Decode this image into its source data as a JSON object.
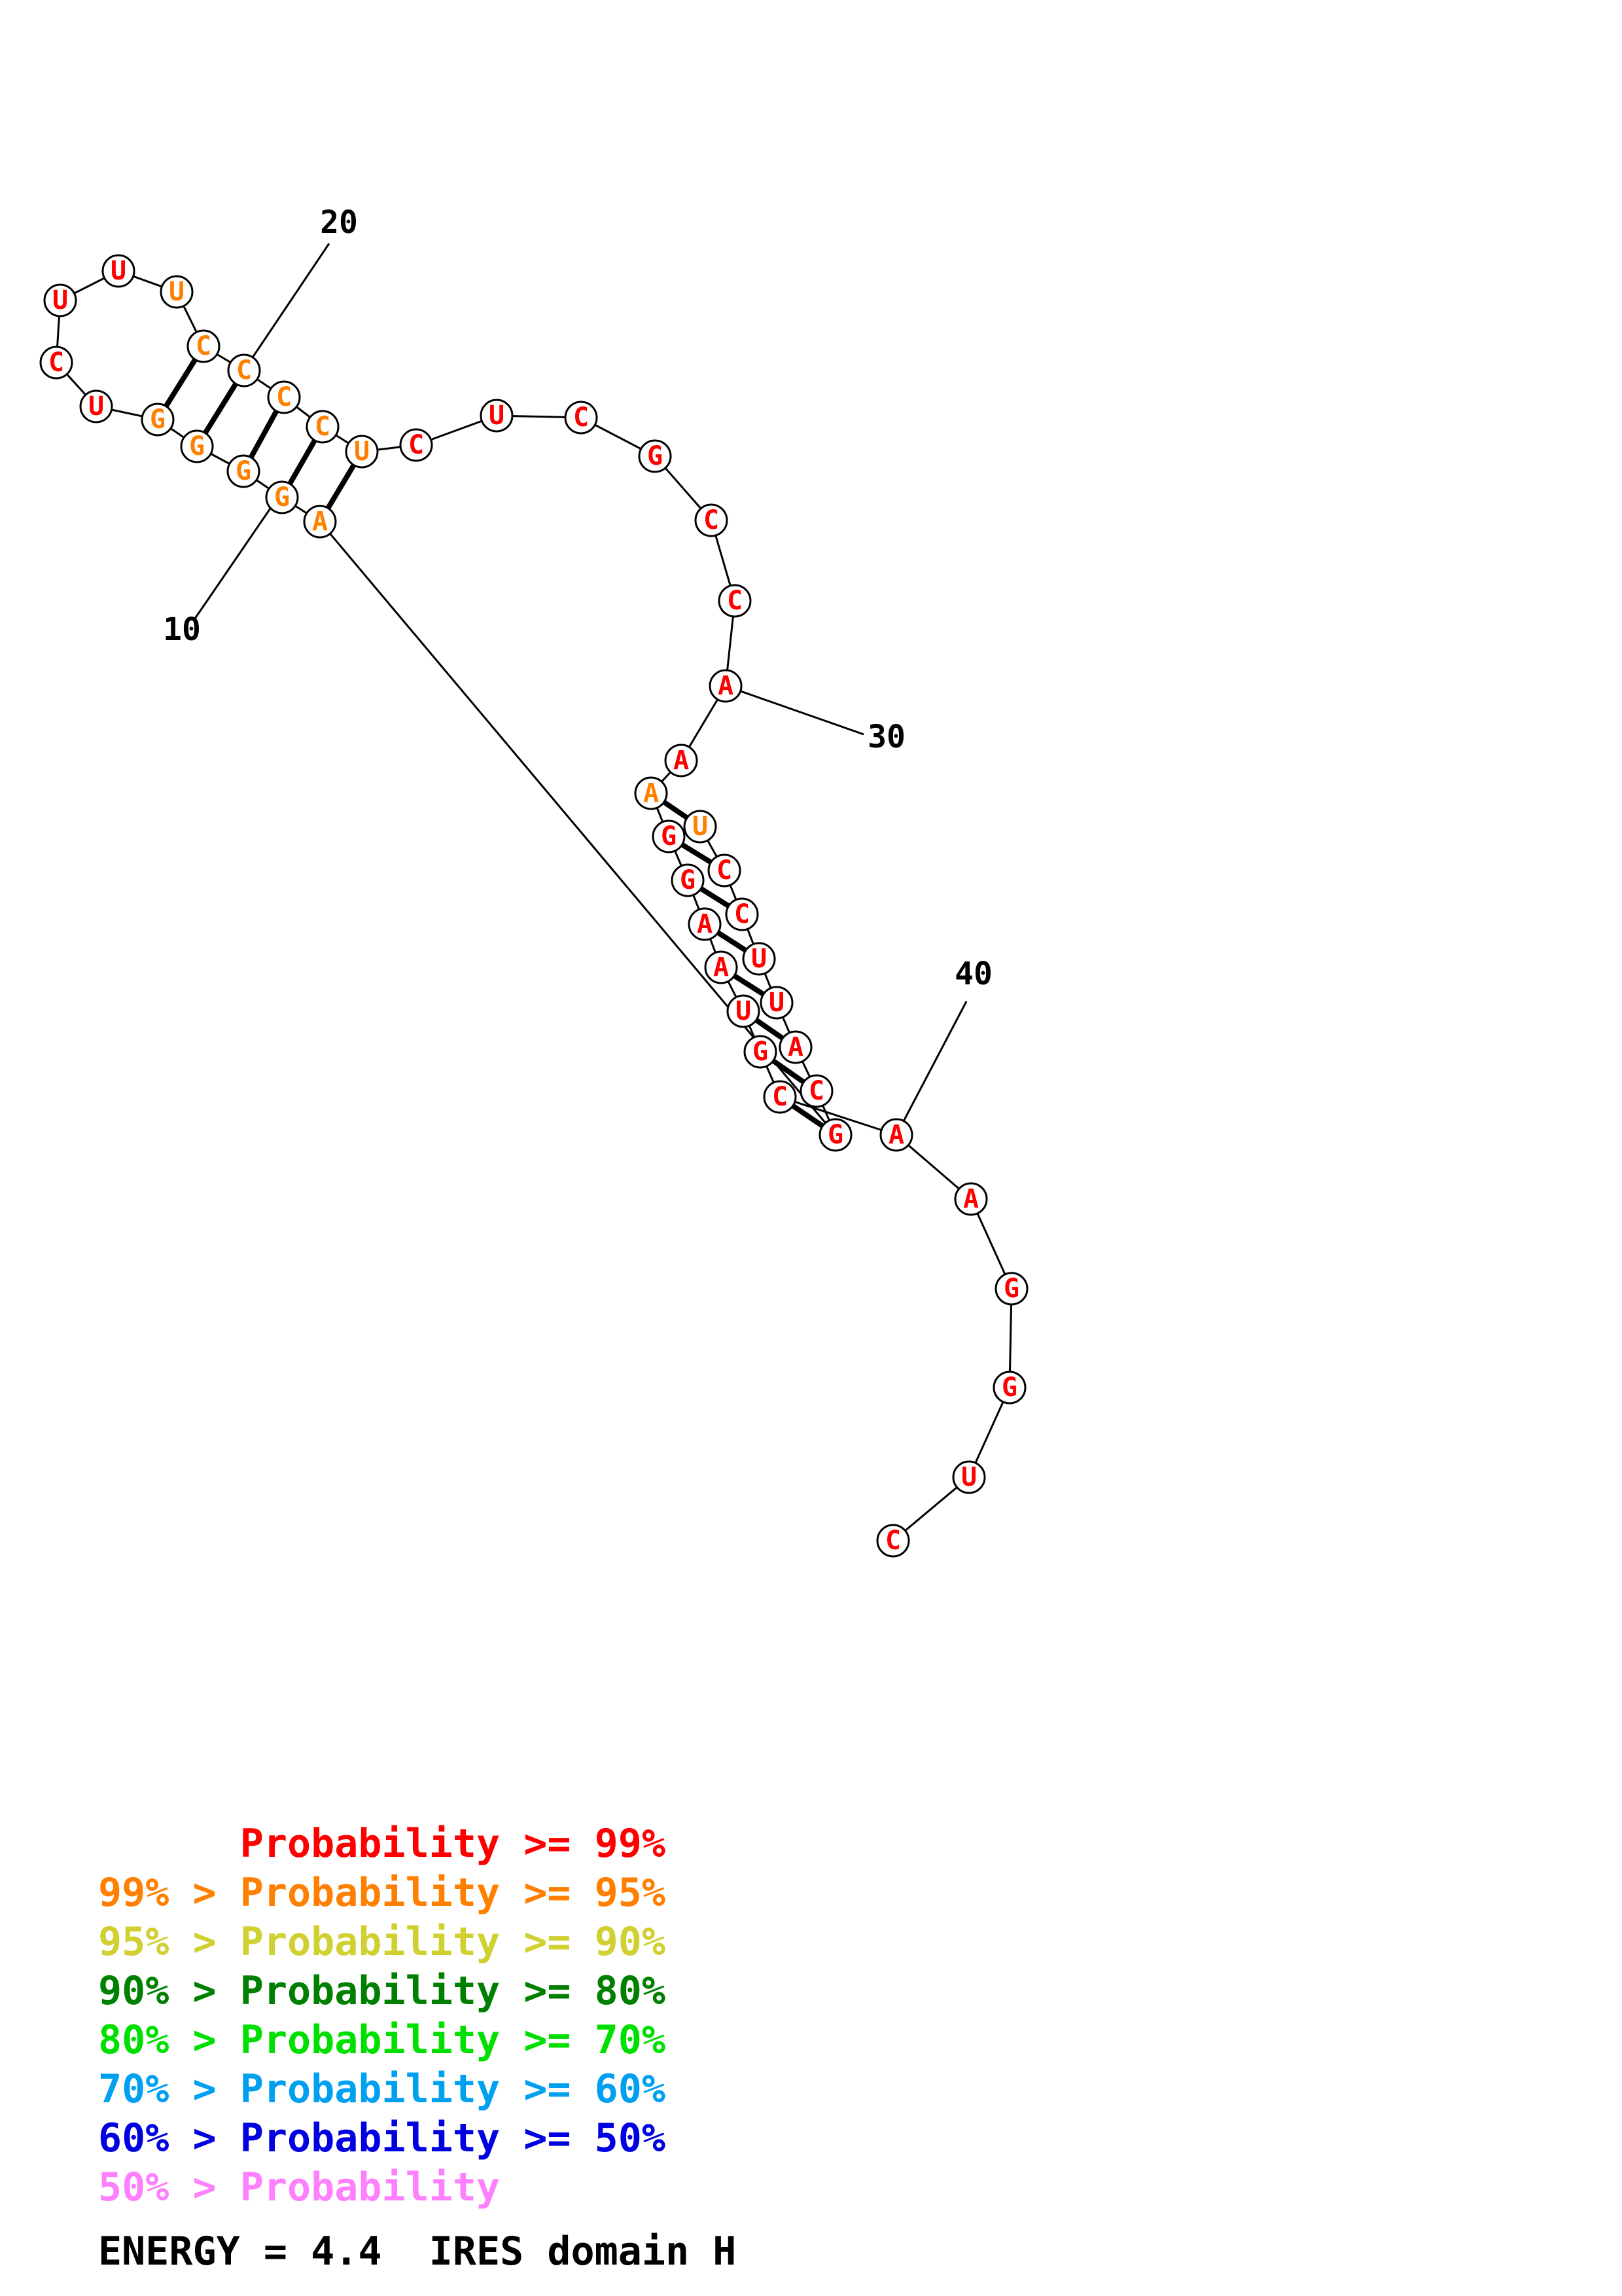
{
  "structure": {
    "nucleotides": [
      {
        "n": 1,
        "base": "U",
        "prob": "p95"
      },
      {
        "n": 2,
        "base": "C",
        "prob": "p99"
      },
      {
        "n": 3,
        "base": "C",
        "prob": "p99"
      },
      {
        "n": 4,
        "base": "U",
        "prob": "p99"
      },
      {
        "n": 5,
        "base": "U",
        "prob": "p99"
      },
      {
        "n": 6,
        "base": "A",
        "prob": "p99"
      },
      {
        "n": 7,
        "base": "C",
        "prob": "p99"
      },
      {
        "n": 8,
        "base": "G",
        "prob": "p99"
      },
      {
        "n": 9,
        "base": "A",
        "prob": "p95"
      },
      {
        "n": 10,
        "base": "G",
        "prob": "p95"
      },
      {
        "n": 11,
        "base": "G",
        "prob": "p95"
      },
      {
        "n": 12,
        "base": "G",
        "prob": "p95"
      },
      {
        "n": 13,
        "base": "G",
        "prob": "p95"
      },
      {
        "n": 14,
        "base": "U",
        "prob": "p99"
      },
      {
        "n": 15,
        "base": "C",
        "prob": "p99"
      },
      {
        "n": 16,
        "base": "U",
        "prob": "p99"
      },
      {
        "n": 17,
        "base": "U",
        "prob": "p99"
      },
      {
        "n": 18,
        "base": "U",
        "prob": "p95"
      },
      {
        "n": 19,
        "base": "C",
        "prob": "p95"
      },
      {
        "n": 20,
        "base": "C",
        "prob": "p95"
      },
      {
        "n": 21,
        "base": "C",
        "prob": "p95"
      },
      {
        "n": 22,
        "base": "C",
        "prob": "p95"
      },
      {
        "n": 23,
        "base": "U",
        "prob": "p95"
      },
      {
        "n": 24,
        "base": "C",
        "prob": "p99"
      },
      {
        "n": 25,
        "base": "U",
        "prob": "p99"
      },
      {
        "n": 26,
        "base": "C",
        "prob": "p99"
      },
      {
        "n": 27,
        "base": "G",
        "prob": "p99"
      },
      {
        "n": 28,
        "base": "C",
        "prob": "p99"
      },
      {
        "n": 29,
        "base": "C",
        "prob": "p99"
      },
      {
        "n": 30,
        "base": "A",
        "prob": "p99"
      },
      {
        "n": 31,
        "base": "A",
        "prob": "p99"
      },
      {
        "n": 32,
        "base": "A",
        "prob": "p95"
      },
      {
        "n": 33,
        "base": "G",
        "prob": "p99"
      },
      {
        "n": 34,
        "base": "G",
        "prob": "p99"
      },
      {
        "n": 35,
        "base": "A",
        "prob": "p99"
      },
      {
        "n": 36,
        "base": "A",
        "prob": "p99"
      },
      {
        "n": 37,
        "base": "U",
        "prob": "p99"
      },
      {
        "n": 38,
        "base": "G",
        "prob": "p99"
      },
      {
        "n": 39,
        "base": "C",
        "prob": "p99"
      },
      {
        "n": 40,
        "base": "A",
        "prob": "p99"
      },
      {
        "n": 41,
        "base": "A",
        "prob": "p99"
      },
      {
        "n": 42,
        "base": "G",
        "prob": "p99"
      },
      {
        "n": 43,
        "base": "G",
        "prob": "p99"
      },
      {
        "n": 44,
        "base": "U",
        "prob": "p99"
      },
      {
        "n": 45,
        "base": "C",
        "prob": "p99"
      }
    ],
    "pairs": [
      [
        1,
        32
      ],
      [
        2,
        33
      ],
      [
        3,
        34
      ],
      [
        4,
        35
      ],
      [
        5,
        36
      ],
      [
        6,
        37
      ],
      [
        7,
        38
      ],
      [
        8,
        39
      ],
      [
        9,
        23
      ],
      [
        10,
        22
      ],
      [
        11,
        21
      ],
      [
        12,
        20
      ],
      [
        13,
        19
      ]
    ],
    "index_labels": [
      "10",
      "20",
      "30",
      "40"
    ]
  },
  "legend": {
    "lines": [
      {
        "text": "      Probability >= 99%",
        "color": "#ff0000"
      },
      {
        "text": "99% > Probability >= 95%",
        "color": "#ff8000"
      },
      {
        "text": "95% > Probability >= 90%",
        "color": "#d0d030"
      },
      {
        "text": "90% > Probability >= 80%",
        "color": "#008000"
      },
      {
        "text": "80% > Probability >= 70%",
        "color": "#00e000"
      },
      {
        "text": "70% > Probability >= 60%",
        "color": "#00a0f0"
      },
      {
        "text": "60% > Probability >= 50%",
        "color": "#0000e0"
      },
      {
        "text": "50% > Probability",
        "color": "#ff80ff"
      }
    ]
  },
  "footer": {
    "text": "ENERGY = 4.4  IRES domain H"
  },
  "colors": {
    "p99": "#ff0000",
    "p95": "#ff8000"
  }
}
